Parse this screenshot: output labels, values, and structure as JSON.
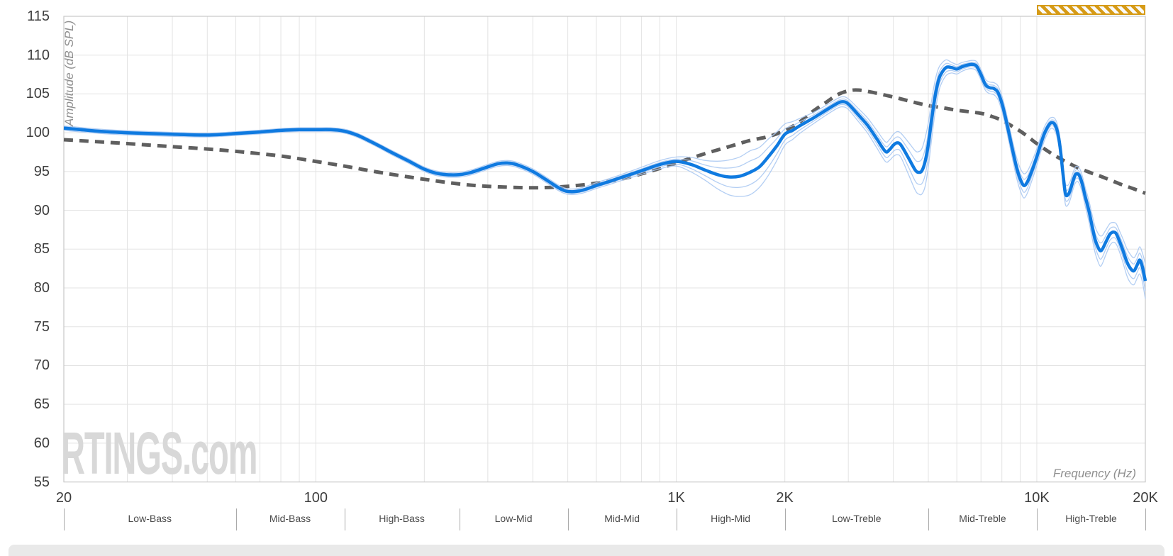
{
  "watermark": {
    "text": "RTINGS.com",
    "color": "#d8d8d8"
  },
  "badge": {
    "name": "hatched-range-marker",
    "from_hz": 10000,
    "to_hz": 20000,
    "color": "#d69b17",
    "stripe_color": "#fafafa"
  },
  "bottom_bar": {
    "color": "#e9e9e9"
  },
  "colors": {
    "grid": "#e3e3e3",
    "border": "#c8c8c8",
    "tick_text": "#3d3d3d",
    "band_text": "#4a4a4a",
    "axis_title": "#8f8f8f",
    "measured": "#0f7ae0",
    "variation": "#abc9f2",
    "target": "#5f5f5f"
  },
  "chart_data": {
    "type": "line",
    "title": "",
    "xlabel": "Frequency (Hz)",
    "ylabel": "Amplitude (dB SPL)",
    "x_scale": "log",
    "x_range": [
      20,
      20000
    ],
    "y_range": [
      55,
      115
    ],
    "grid": true,
    "y_ticks": [
      115,
      110,
      105,
      100,
      95,
      90,
      85,
      80,
      75,
      70,
      65,
      60,
      55
    ],
    "x_ticks": [
      {
        "value": 20,
        "label": "20"
      },
      {
        "value": 100,
        "label": "100"
      },
      {
        "value": 1000,
        "label": "1K"
      },
      {
        "value": 2000,
        "label": "2K"
      },
      {
        "value": 10000,
        "label": "10K"
      },
      {
        "value": 20000,
        "label": "20K"
      }
    ],
    "x_gridlines": [
      20,
      30,
      40,
      50,
      60,
      70,
      80,
      90,
      100,
      200,
      300,
      400,
      500,
      600,
      700,
      800,
      900,
      1000,
      2000,
      3000,
      4000,
      5000,
      6000,
      7000,
      8000,
      9000,
      10000,
      20000
    ],
    "bands": [
      {
        "label": "Low-Bass",
        "from": 20,
        "to": 60
      },
      {
        "label": "Mid-Bass",
        "from": 60,
        "to": 120
      },
      {
        "label": "High-Bass",
        "from": 120,
        "to": 250
      },
      {
        "label": "Low-Mid",
        "from": 250,
        "to": 500
      },
      {
        "label": "Mid-Mid",
        "from": 500,
        "to": 1000
      },
      {
        "label": "High-Mid",
        "from": 1000,
        "to": 2000
      },
      {
        "label": "Low-Treble",
        "from": 2000,
        "to": 5000
      },
      {
        "label": "Mid-Treble",
        "from": 5000,
        "to": 10000
      },
      {
        "label": "High-Treble",
        "from": 10000,
        "to": 20000
      }
    ],
    "series": [
      {
        "name": "frequency-response-measured",
        "style": "solid",
        "color": "#0f7ae0",
        "width": 4.5,
        "points": [
          [
            20,
            100.6
          ],
          [
            25,
            100.2
          ],
          [
            30,
            100.0
          ],
          [
            40,
            99.8
          ],
          [
            50,
            99.7
          ],
          [
            60,
            99.9
          ],
          [
            70,
            100.1
          ],
          [
            80,
            100.3
          ],
          [
            90,
            100.4
          ],
          [
            100,
            100.4
          ],
          [
            110,
            100.4
          ],
          [
            120,
            100.2
          ],
          [
            130,
            99.7
          ],
          [
            140,
            99.0
          ],
          [
            150,
            98.3
          ],
          [
            160,
            97.6
          ],
          [
            180,
            96.4
          ],
          [
            200,
            95.3
          ],
          [
            215,
            94.8
          ],
          [
            230,
            94.6
          ],
          [
            250,
            94.6
          ],
          [
            270,
            94.9
          ],
          [
            300,
            95.6
          ],
          [
            320,
            96.0
          ],
          [
            340,
            96.1
          ],
          [
            360,
            95.9
          ],
          [
            400,
            95.0
          ],
          [
            440,
            93.8
          ],
          [
            480,
            92.7
          ],
          [
            510,
            92.4
          ],
          [
            550,
            92.6
          ],
          [
            600,
            93.2
          ],
          [
            650,
            93.7
          ],
          [
            700,
            94.2
          ],
          [
            800,
            95.1
          ],
          [
            900,
            95.9
          ],
          [
            1000,
            96.3
          ],
          [
            1100,
            95.9
          ],
          [
            1200,
            95.2
          ],
          [
            1300,
            94.6
          ],
          [
            1400,
            94.3
          ],
          [
            1500,
            94.4
          ],
          [
            1600,
            94.9
          ],
          [
            1700,
            95.6
          ],
          [
            1800,
            96.9
          ],
          [
            1900,
            98.3
          ],
          [
            2000,
            99.8
          ],
          [
            2100,
            100.3
          ],
          [
            2200,
            100.9
          ],
          [
            2400,
            101.9
          ],
          [
            2600,
            102.9
          ],
          [
            2800,
            103.8
          ],
          [
            2900,
            104.0
          ],
          [
            3000,
            103.7
          ],
          [
            3200,
            102.3
          ],
          [
            3400,
            100.9
          ],
          [
            3600,
            99.2
          ],
          [
            3800,
            97.6
          ],
          [
            3900,
            97.8
          ],
          [
            4000,
            98.4
          ],
          [
            4100,
            98.7
          ],
          [
            4200,
            98.4
          ],
          [
            4400,
            96.8
          ],
          [
            4600,
            95.2
          ],
          [
            4700,
            94.9
          ],
          [
            4800,
            95.1
          ],
          [
            4900,
            96.3
          ],
          [
            5000,
            98.5
          ],
          [
            5100,
            101.5
          ],
          [
            5200,
            104.2
          ],
          [
            5300,
            106.2
          ],
          [
            5400,
            107.4
          ],
          [
            5600,
            108.4
          ],
          [
            5800,
            108.4
          ],
          [
            6000,
            108.2
          ],
          [
            6200,
            108.5
          ],
          [
            6400,
            108.7
          ],
          [
            6600,
            108.8
          ],
          [
            6800,
            108.6
          ],
          [
            7000,
            107.5
          ],
          [
            7200,
            106.2
          ],
          [
            7400,
            105.8
          ],
          [
            7600,
            105.7
          ],
          [
            7800,
            105.2
          ],
          [
            8000,
            103.8
          ],
          [
            8200,
            101.8
          ],
          [
            8400,
            99.6
          ],
          [
            8600,
            97.4
          ],
          [
            8800,
            95.4
          ],
          [
            9000,
            94.0
          ],
          [
            9200,
            93.2
          ],
          [
            9400,
            93.6
          ],
          [
            9600,
            94.6
          ],
          [
            9800,
            95.7
          ],
          [
            10000,
            96.9
          ],
          [
            10200,
            98.2
          ],
          [
            10500,
            99.9
          ],
          [
            10800,
            101.0
          ],
          [
            11000,
            101.3
          ],
          [
            11200,
            101.1
          ],
          [
            11400,
            100.2
          ],
          [
            11600,
            98.2
          ],
          [
            11800,
            95.0
          ],
          [
            12000,
            92.2
          ],
          [
            12200,
            92.0
          ],
          [
            12400,
            92.7
          ],
          [
            12600,
            93.8
          ],
          [
            12800,
            94.6
          ],
          [
            13000,
            94.7
          ],
          [
            13200,
            94.2
          ],
          [
            13400,
            93.2
          ],
          [
            13600,
            91.9
          ],
          [
            13800,
            90.8
          ],
          [
            14000,
            89.6
          ],
          [
            14200,
            88.2
          ],
          [
            14500,
            86.3
          ],
          [
            14800,
            85.2
          ],
          [
            15000,
            84.8
          ],
          [
            15200,
            85.0
          ],
          [
            15500,
            85.8
          ],
          [
            15800,
            86.6
          ],
          [
            16000,
            87.0
          ],
          [
            16300,
            87.2
          ],
          [
            16600,
            87.0
          ],
          [
            17000,
            85.9
          ],
          [
            17400,
            84.6
          ],
          [
            17800,
            83.3
          ],
          [
            18200,
            82.5
          ],
          [
            18600,
            82.2
          ],
          [
            19000,
            83.0
          ],
          [
            19300,
            83.6
          ],
          [
            19600,
            82.8
          ],
          [
            19800,
            81.9
          ],
          [
            20000,
            80.9
          ]
        ]
      },
      {
        "name": "target-response",
        "style": "dashed",
        "color": "#5f5f5f",
        "width": 5,
        "points": [
          [
            20,
            99.1
          ],
          [
            30,
            98.6
          ],
          [
            40,
            98.2
          ],
          [
            50,
            97.9
          ],
          [
            60,
            97.6
          ],
          [
            80,
            97.0
          ],
          [
            100,
            96.3
          ],
          [
            120,
            95.7
          ],
          [
            150,
            94.9
          ],
          [
            200,
            94.0
          ],
          [
            250,
            93.4
          ],
          [
            300,
            93.1
          ],
          [
            400,
            92.9
          ],
          [
            500,
            93.1
          ],
          [
            600,
            93.5
          ],
          [
            700,
            94.0
          ],
          [
            800,
            94.7
          ],
          [
            900,
            95.4
          ],
          [
            1000,
            96.1
          ],
          [
            1200,
            97.3
          ],
          [
            1400,
            98.2
          ],
          [
            1600,
            99.0
          ],
          [
            1800,
            99.5
          ],
          [
            2000,
            100.3
          ],
          [
            2200,
            101.4
          ],
          [
            2400,
            102.8
          ],
          [
            2600,
            103.9
          ],
          [
            2800,
            104.9
          ],
          [
            3000,
            105.4
          ],
          [
            3200,
            105.5
          ],
          [
            3500,
            105.2
          ],
          [
            4000,
            104.6
          ],
          [
            4500,
            104.0
          ],
          [
            5000,
            103.5
          ],
          [
            5500,
            103.2
          ],
          [
            6000,
            102.9
          ],
          [
            7000,
            102.5
          ],
          [
            7500,
            102.1
          ],
          [
            8000,
            101.6
          ],
          [
            8500,
            100.9
          ],
          [
            9000,
            100.2
          ],
          [
            9500,
            99.4
          ],
          [
            10000,
            98.6
          ],
          [
            11000,
            97.3
          ],
          [
            12000,
            96.3
          ],
          [
            13000,
            95.5
          ],
          [
            14000,
            94.9
          ],
          [
            15000,
            94.4
          ],
          [
            16000,
            93.9
          ],
          [
            17000,
            93.4
          ],
          [
            18000,
            93.0
          ],
          [
            19000,
            92.6
          ],
          [
            20000,
            92.2
          ]
        ]
      }
    ],
    "variation": {
      "name": "measurement-variation-traces",
      "color": "#abc9f2",
      "width": 1.3,
      "opacity": 0.9,
      "multipliers": [
        -1,
        -0.55,
        0.5,
        0.95
      ],
      "spread": [
        [
          20,
          0.3
        ],
        [
          50,
          0.25
        ],
        [
          100,
          0.25
        ],
        [
          200,
          0.3
        ],
        [
          400,
          0.35
        ],
        [
          700,
          0.4
        ],
        [
          1000,
          0.6
        ],
        [
          1200,
          1.3
        ],
        [
          1400,
          2.3
        ],
        [
          1600,
          2.9
        ],
        [
          1800,
          2.4
        ],
        [
          2000,
          1.4
        ],
        [
          2300,
          0.8
        ],
        [
          2700,
          0.6
        ],
        [
          3000,
          0.7
        ],
        [
          3400,
          1.0
        ],
        [
          3800,
          1.3
        ],
        [
          4200,
          1.6
        ],
        [
          4600,
          2.6
        ],
        [
          4900,
          3.2
        ],
        [
          5100,
          2.6
        ],
        [
          5400,
          1.4
        ],
        [
          5800,
          0.7
        ],
        [
          6500,
          0.5
        ],
        [
          7000,
          0.7
        ],
        [
          7600,
          0.8
        ],
        [
          8000,
          1.0
        ],
        [
          8600,
          1.2
        ],
        [
          9200,
          1.6
        ],
        [
          9600,
          1.3
        ],
        [
          10000,
          1.1
        ],
        [
          10500,
          0.9
        ],
        [
          11000,
          0.7
        ],
        [
          11500,
          1.0
        ],
        [
          12000,
          1.4
        ],
        [
          12600,
          1.1
        ],
        [
          13000,
          1.0
        ],
        [
          13600,
          1.2
        ],
        [
          14000,
          1.4
        ],
        [
          14500,
          1.7
        ],
        [
          15000,
          2.0
        ],
        [
          15600,
          1.6
        ],
        [
          16300,
          1.3
        ],
        [
          17000,
          1.4
        ],
        [
          18000,
          1.9
        ],
        [
          19000,
          1.7
        ],
        [
          19600,
          1.9
        ],
        [
          20000,
          2.3
        ]
      ]
    }
  }
}
